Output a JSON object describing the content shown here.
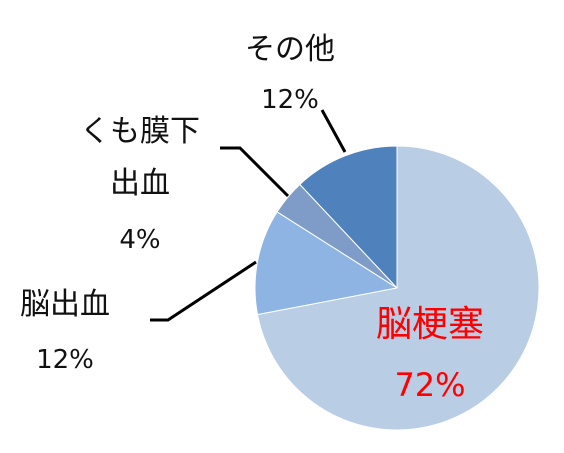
{
  "chart_data": {
    "type": "pie",
    "categories": [
      "脳梗塞",
      "脳出血",
      "くも膜下\n出血",
      "その他"
    ],
    "values": [
      72,
      12,
      4,
      12
    ],
    "value_labels": [
      "72%",
      "12%",
      "4%",
      "12%"
    ],
    "colors": [
      "#b9cde5",
      "#8eb4e3",
      "#7f9cc8",
      "#4f81bd"
    ],
    "label_colors": [
      "#ff0000",
      "#111111",
      "#111111",
      "#111111"
    ]
  }
}
